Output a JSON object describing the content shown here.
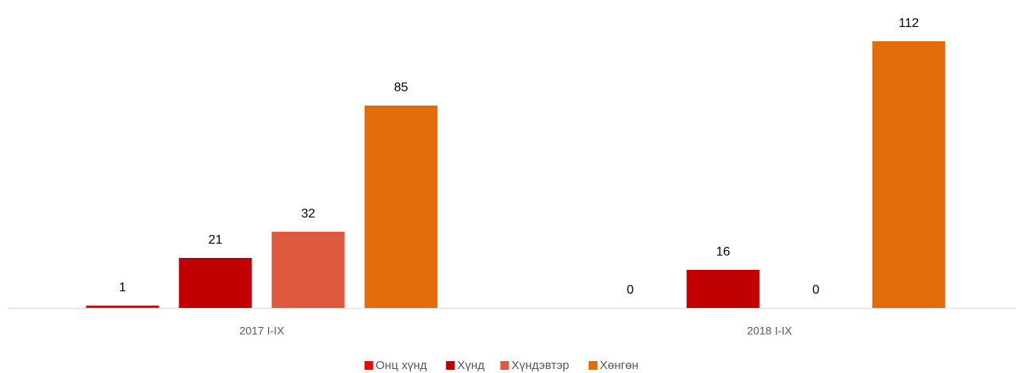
{
  "chart_data": {
    "type": "bar",
    "categories": [
      "2017 I-IX",
      "2018 I-IX"
    ],
    "series": [
      {
        "name": "Онц хүнд",
        "color": "#ff0000",
        "values": [
          1,
          0
        ]
      },
      {
        "name": "Хүнд",
        "color": "#c00000",
        "values": [
          21,
          16
        ]
      },
      {
        "name": "Хүндэвтэр",
        "color": "#dd5a3e",
        "values": [
          32,
          0
        ]
      },
      {
        "name": "Хөнгөн",
        "color": "#e36c0a",
        "values": [
          85,
          112
        ]
      }
    ],
    "ylim": [
      0,
      120
    ],
    "grid": false,
    "legend": "bottom"
  }
}
